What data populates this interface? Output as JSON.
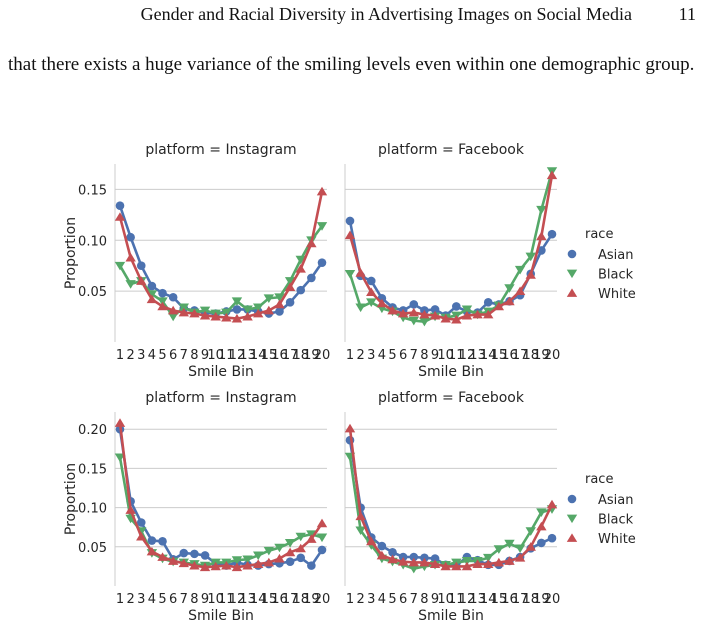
{
  "header": {
    "running_title": "Gender and Racial Diversity in Advertising Images on Social Media",
    "page_number": "11"
  },
  "body": {
    "paragraph": "that there exists a huge variance of the smiling levels even within one demographic group."
  },
  "legend": {
    "title": "race",
    "entries": [
      {
        "label": "Asian",
        "color": "#4c72b0",
        "marker": "circle"
      },
      {
        "label": "Black",
        "color": "#55a868",
        "marker": "triangle-down"
      },
      {
        "label": "White",
        "color": "#c44e52",
        "marker": "triangle-up"
      }
    ]
  },
  "chart_data": [
    {
      "type": "line",
      "title": "platform = Instagram",
      "xlabel": "Smile Bin",
      "ylabel": "Proportion",
      "categories": [
        "1",
        "2",
        "3",
        "4",
        "5",
        "6",
        "7",
        "8",
        "9",
        "10",
        "11",
        "12",
        "13",
        "14",
        "15",
        "16",
        "17",
        "18",
        "19",
        "20"
      ],
      "yticks": [
        "0.05",
        "0.10",
        "0.15"
      ],
      "ylim": [
        0.0,
        0.175
      ],
      "grid": true,
      "series": [
        {
          "name": "Asian",
          "values": [
            0.134,
            0.103,
            0.075,
            0.055,
            0.048,
            0.044,
            0.033,
            0.031,
            0.029,
            0.028,
            0.03,
            0.032,
            0.032,
            0.03,
            0.028,
            0.03,
            0.039,
            0.051,
            0.063,
            0.078
          ]
        },
        {
          "name": "Black",
          "values": [
            0.075,
            0.057,
            0.06,
            0.047,
            0.04,
            0.025,
            0.034,
            0.029,
            0.031,
            0.028,
            0.029,
            0.04,
            0.032,
            0.034,
            0.043,
            0.044,
            0.06,
            0.081,
            0.1,
            0.114
          ]
        },
        {
          "name": "White",
          "values": [
            0.123,
            0.083,
            0.06,
            0.042,
            0.035,
            0.031,
            0.029,
            0.028,
            0.026,
            0.025,
            0.024,
            0.023,
            0.025,
            0.028,
            0.031,
            0.037,
            0.054,
            0.072,
            0.097,
            0.148
          ]
        }
      ]
    },
    {
      "type": "line",
      "title": "platform = Facebook",
      "xlabel": "Smile Bin",
      "ylabel": "",
      "categories": [
        "1",
        "2",
        "3",
        "4",
        "5",
        "6",
        "7",
        "8",
        "9",
        "10",
        "11",
        "12",
        "13",
        "14",
        "15",
        "16",
        "17",
        "18",
        "19",
        "20"
      ],
      "ylim": [
        0.0,
        0.175
      ],
      "grid": true,
      "series": [
        {
          "name": "Asian",
          "values": [
            0.119,
            0.065,
            0.06,
            0.043,
            0.034,
            0.031,
            0.037,
            0.031,
            0.032,
            0.026,
            0.035,
            0.03,
            0.029,
            0.039,
            0.037,
            0.04,
            0.046,
            0.067,
            0.09,
            0.106
          ]
        },
        {
          "name": "Black",
          "values": [
            0.067,
            0.034,
            0.039,
            0.033,
            0.03,
            0.024,
            0.021,
            0.02,
            0.025,
            0.024,
            0.026,
            0.032,
            0.027,
            0.03,
            0.036,
            0.053,
            0.071,
            0.084,
            0.13,
            0.168
          ]
        },
        {
          "name": "White",
          "values": [
            0.105,
            0.068,
            0.049,
            0.038,
            0.031,
            0.028,
            0.029,
            0.027,
            0.026,
            0.023,
            0.022,
            0.026,
            0.027,
            0.027,
            0.035,
            0.04,
            0.05,
            0.066,
            0.104,
            0.164
          ]
        }
      ]
    },
    {
      "type": "line",
      "title": "platform = Instagram",
      "xlabel": "Smile Bin",
      "ylabel": "Proportion",
      "categories": [
        "1",
        "2",
        "3",
        "4",
        "5",
        "6",
        "7",
        "8",
        "9",
        "10",
        "11",
        "12",
        "13",
        "14",
        "15",
        "16",
        "17",
        "18",
        "19",
        "20"
      ],
      "yticks": [
        "0.05",
        "0.10",
        "0.15",
        "0.20"
      ],
      "ylim": [
        0.0,
        0.222
      ],
      "grid": true,
      "series": [
        {
          "name": "Asian",
          "values": [
            0.2,
            0.108,
            0.081,
            0.058,
            0.057,
            0.034,
            0.042,
            0.041,
            0.039,
            0.029,
            0.026,
            0.03,
            0.027,
            0.026,
            0.028,
            0.029,
            0.031,
            0.036,
            0.026,
            0.046
          ]
        },
        {
          "name": "Black",
          "values": [
            0.164,
            0.086,
            0.07,
            0.042,
            0.035,
            0.031,
            0.03,
            0.028,
            0.026,
            0.03,
            0.03,
            0.033,
            0.034,
            0.039,
            0.045,
            0.049,
            0.055,
            0.063,
            0.066,
            0.062
          ]
        },
        {
          "name": "White",
          "values": [
            0.208,
            0.097,
            0.063,
            0.044,
            0.037,
            0.032,
            0.029,
            0.026,
            0.024,
            0.025,
            0.026,
            0.024,
            0.026,
            0.028,
            0.03,
            0.035,
            0.043,
            0.048,
            0.06,
            0.08
          ]
        }
      ]
    },
    {
      "type": "line",
      "title": "platform = Facebook",
      "xlabel": "Smile Bin",
      "ylabel": "",
      "categories": [
        "1",
        "2",
        "3",
        "4",
        "5",
        "6",
        "7",
        "8",
        "9",
        "10",
        "11",
        "12",
        "13",
        "14",
        "15",
        "16",
        "17",
        "18",
        "19",
        "20"
      ],
      "ylim": [
        0.0,
        0.222
      ],
      "grid": true,
      "series": [
        {
          "name": "Asian",
          "values": [
            0.186,
            0.1,
            0.062,
            0.051,
            0.043,
            0.037,
            0.037,
            0.036,
            0.035,
            0.027,
            0.026,
            0.037,
            0.033,
            0.027,
            0.027,
            0.032,
            0.037,
            0.048,
            0.055,
            0.061
          ]
        },
        {
          "name": "Black",
          "values": [
            0.165,
            0.071,
            0.052,
            0.035,
            0.031,
            0.027,
            0.022,
            0.025,
            0.027,
            0.027,
            0.03,
            0.032,
            0.032,
            0.036,
            0.047,
            0.054,
            0.048,
            0.07,
            0.094,
            0.098
          ]
        },
        {
          "name": "White",
          "values": [
            0.201,
            0.089,
            0.057,
            0.039,
            0.034,
            0.031,
            0.03,
            0.03,
            0.028,
            0.025,
            0.025,
            0.025,
            0.028,
            0.028,
            0.03,
            0.032,
            0.036,
            0.05,
            0.076,
            0.104
          ]
        }
      ]
    }
  ]
}
